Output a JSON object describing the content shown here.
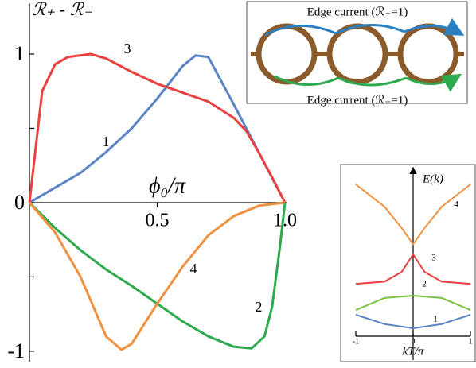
{
  "chart_data": [
    {
      "type": "line",
      "ylabel": "ℛ₊ - ℛ₋",
      "xlabel": "ϕ₀/π",
      "xlim": [
        0,
        1
      ],
      "ylim": [
        -1.07,
        1.34
      ],
      "xticks": [
        0.5,
        {
          "value": 1,
          "label": "1.0"
        }
      ],
      "yticks": [
        {
          "value": -1,
          "label": "-1"
        },
        0,
        1
      ],
      "yminorticks": [
        -0.5,
        0.5
      ],
      "series": [
        {
          "name": "1",
          "color": "#5b84c4",
          "x": [
            0,
            0.1,
            0.2,
            0.3,
            0.4,
            0.5,
            0.6,
            0.65,
            0.7,
            0.8,
            0.9,
            1
          ],
          "values": [
            0,
            0.1,
            0.2,
            0.34,
            0.5,
            0.7,
            0.92,
            0.99,
            0.98,
            0.66,
            0.33,
            0
          ]
        },
        {
          "name": "2",
          "color": "#2eaa4e",
          "x": [
            0,
            0.1,
            0.2,
            0.3,
            0.4,
            0.5,
            0.6,
            0.7,
            0.8,
            0.87,
            0.92,
            0.95,
            0.98,
            1
          ],
          "values": [
            0,
            -0.17,
            -0.32,
            -0.45,
            -0.56,
            -0.68,
            -0.8,
            -0.9,
            -0.97,
            -0.98,
            -0.9,
            -0.7,
            -0.3,
            0
          ]
        },
        {
          "name": "3",
          "color": "#e8413f",
          "x": [
            0,
            0.05,
            0.1,
            0.15,
            0.24,
            0.3,
            0.4,
            0.5,
            0.6,
            0.7,
            0.8,
            0.85,
            0.9,
            0.95,
            1
          ],
          "values": [
            0,
            0.75,
            0.93,
            0.98,
            1,
            0.97,
            0.88,
            0.8,
            0.74,
            0.68,
            0.57,
            0.48,
            0.33,
            0.17,
            0
          ]
        },
        {
          "name": "4",
          "color": "#f0913f",
          "x": [
            0,
            0.1,
            0.2,
            0.3,
            0.36,
            0.4,
            0.5,
            0.6,
            0.7,
            0.8,
            0.9,
            1
          ],
          "values": [
            0,
            -0.2,
            -0.5,
            -0.9,
            -0.99,
            -0.95,
            -0.68,
            -0.43,
            -0.22,
            -0.09,
            -0.02,
            0
          ]
        }
      ]
    },
    {
      "type": "line",
      "ylabel": "E(k)",
      "xlabel": "kT/π",
      "xlim": [
        -1,
        1
      ],
      "ylim": [
        0,
        10
      ],
      "xticks": [
        {
          "value": -1,
          "label": "-1"
        },
        0,
        1
      ],
      "series": [
        {
          "name": "1",
          "color": "#5b84c4",
          "x": [
            -1,
            -0.5,
            0,
            0.5,
            1
          ],
          "values": [
            1.17,
            0.6,
            0.34,
            0.6,
            1.17
          ]
        },
        {
          "name": "2",
          "color": "#7cc242",
          "x": [
            -1,
            -0.5,
            0,
            0.5,
            1
          ],
          "values": [
            1.46,
            2.2,
            2.34,
            2.2,
            1.46
          ]
        },
        {
          "name": "3",
          "color": "#e8413f",
          "x": [
            -1,
            -0.5,
            -0.2,
            0,
            0.2,
            0.5,
            1
          ],
          "values": [
            3.07,
            3.2,
            3.8,
            4.88,
            3.8,
            3.2,
            3.07
          ]
        },
        {
          "name": "4",
          "color": "#f0913f",
          "x": [
            -1,
            -0.5,
            -0.2,
            0,
            0.2,
            0.5,
            1
          ],
          "values": [
            9.17,
            7.8,
            6.5,
            5.5,
            6.5,
            7.8,
            9.17
          ]
        }
      ]
    }
  ],
  "diagram": {
    "top_text": "Edge current (ℛ₊=1)",
    "bottom_text": "Edge current (ℛ₋=1)"
  }
}
